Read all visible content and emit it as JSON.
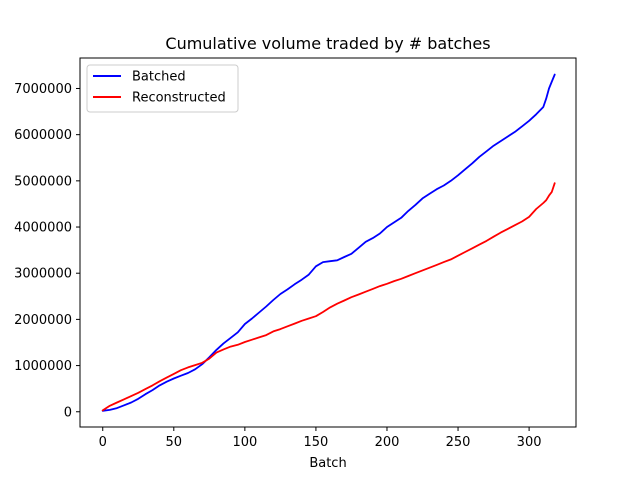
{
  "chart_data": {
    "type": "line",
    "title": "Cumulative volume traded by # batches",
    "xlabel": "Batch",
    "ylabel": "",
    "xlim": [
      -16,
      333
    ],
    "ylim": [
      -330000,
      7660000
    ],
    "xticks": [
      0,
      50,
      100,
      150,
      200,
      250,
      300
    ],
    "yticks": [
      0,
      1000000,
      2000000,
      3000000,
      4000000,
      5000000,
      6000000,
      7000000
    ],
    "grid": false,
    "legend_position": "upper-left",
    "series": [
      {
        "name": "Batched",
        "color": "#0000ff",
        "x": [
          0,
          5,
          10,
          15,
          20,
          25,
          30,
          35,
          40,
          45,
          50,
          55,
          60,
          65,
          70,
          75,
          80,
          85,
          90,
          95,
          100,
          105,
          110,
          115,
          120,
          125,
          130,
          135,
          140,
          145,
          150,
          155,
          160,
          165,
          170,
          175,
          180,
          185,
          190,
          195,
          200,
          205,
          210,
          215,
          220,
          225,
          230,
          235,
          240,
          245,
          250,
          255,
          260,
          265,
          270,
          275,
          280,
          285,
          290,
          295,
          300,
          305,
          310,
          312,
          314,
          316,
          318
        ],
        "y": [
          20000,
          40000,
          80000,
          140000,
          200000,
          280000,
          380000,
          470000,
          570000,
          650000,
          720000,
          780000,
          840000,
          920000,
          1030000,
          1180000,
          1340000,
          1480000,
          1600000,
          1720000,
          1900000,
          2020000,
          2150000,
          2280000,
          2420000,
          2550000,
          2650000,
          2760000,
          2860000,
          2970000,
          3150000,
          3240000,
          3260000,
          3280000,
          3350000,
          3420000,
          3550000,
          3680000,
          3760000,
          3860000,
          4000000,
          4100000,
          4200000,
          4350000,
          4480000,
          4620000,
          4720000,
          4820000,
          4900000,
          5000000,
          5120000,
          5250000,
          5380000,
          5520000,
          5640000,
          5760000,
          5860000,
          5960000,
          6060000,
          6180000,
          6300000,
          6440000,
          6600000,
          6780000,
          7000000,
          7150000,
          7300000
        ]
      },
      {
        "name": "Reconstructed",
        "color": "#ff0000",
        "x": [
          0,
          5,
          10,
          15,
          20,
          25,
          30,
          35,
          40,
          45,
          50,
          55,
          60,
          65,
          70,
          75,
          80,
          85,
          90,
          95,
          100,
          105,
          110,
          115,
          120,
          125,
          130,
          135,
          140,
          145,
          150,
          155,
          160,
          165,
          170,
          175,
          180,
          185,
          190,
          195,
          200,
          205,
          210,
          215,
          220,
          225,
          230,
          235,
          240,
          245,
          250,
          255,
          260,
          265,
          270,
          275,
          280,
          285,
          290,
          295,
          300,
          305,
          310,
          312,
          314,
          316,
          318
        ],
        "y": [
          30000,
          130000,
          200000,
          270000,
          340000,
          410000,
          490000,
          570000,
          660000,
          740000,
          820000,
          900000,
          960000,
          1010000,
          1060000,
          1150000,
          1280000,
          1350000,
          1410000,
          1450000,
          1510000,
          1560000,
          1610000,
          1660000,
          1740000,
          1790000,
          1850000,
          1910000,
          1970000,
          2020000,
          2070000,
          2160000,
          2260000,
          2340000,
          2410000,
          2480000,
          2540000,
          2600000,
          2660000,
          2720000,
          2770000,
          2830000,
          2880000,
          2940000,
          3000000,
          3060000,
          3120000,
          3180000,
          3240000,
          3300000,
          3380000,
          3460000,
          3540000,
          3620000,
          3700000,
          3790000,
          3880000,
          3960000,
          4040000,
          4120000,
          4220000,
          4390000,
          4520000,
          4580000,
          4680000,
          4760000,
          4950000
        ]
      }
    ]
  }
}
